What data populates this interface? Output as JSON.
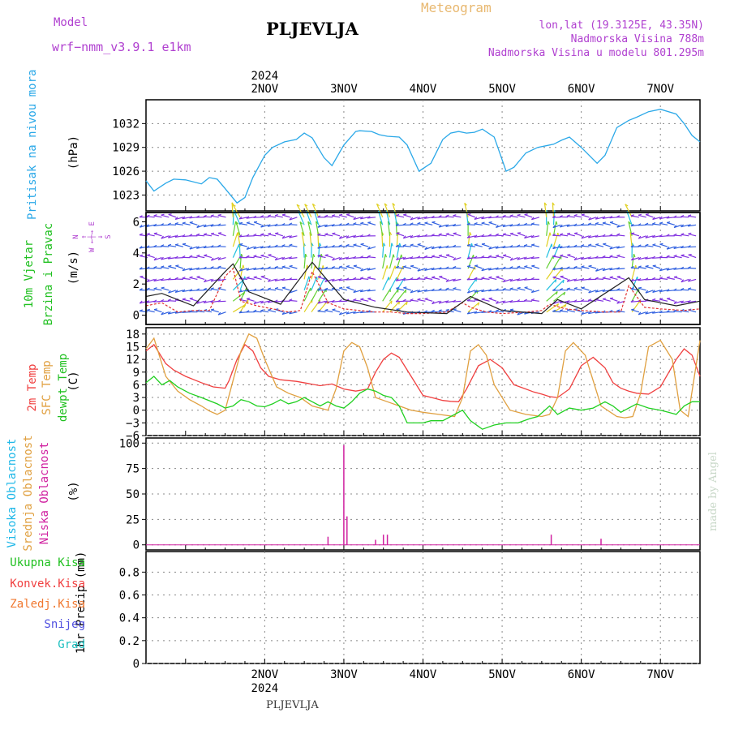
{
  "header": {
    "model_label": "Model",
    "model_value": "wrf−nmm_v3.9.1  e1km",
    "station_title": "PLJEVLJA",
    "meteogram_label": "Meteogram",
    "lonlat": "lon,lat (19.3125E, 43.35N)",
    "height_real": "Nadmorska Visina 788m",
    "height_model": "Nadmorska Visina u modelu 801.295m",
    "footer_station": "PLJEVLJA",
    "credit": "made by Angel",
    "colors": {
      "model": "#b040d0",
      "meteogram": "#e8b870",
      "info": "#b040d0",
      "credit": "#c8d8c8"
    }
  },
  "x_axis": {
    "year_label": "2024",
    "days": [
      "2NOV",
      "3NOV",
      "4NOV",
      "5NOV",
      "6NOV",
      "7NOV"
    ],
    "range_days": [
      0.5,
      7.5
    ]
  },
  "chart_data": [
    {
      "type": "line",
      "id": "pressure",
      "ylabel_lines": [
        "Pritisak na nivou mora"
      ],
      "unit": "(hPa)",
      "yticks": [
        "1023",
        "1026",
        "1029",
        "1032"
      ],
      "ylim": [
        1021,
        1035
      ],
      "grid": true,
      "series": [
        {
          "color": "#2aa8e8",
          "x": [
            0.5,
            0.6,
            0.75,
            0.85,
            1.0,
            1.2,
            1.3,
            1.4,
            1.5,
            1.65,
            1.75,
            1.85,
            2.0,
            2.1,
            2.25,
            2.4,
            2.5,
            2.6,
            2.75,
            2.85,
            3.0,
            3.15,
            3.2,
            3.35,
            3.45,
            3.55,
            3.7,
            3.8,
            3.95,
            4.1,
            4.25,
            4.35,
            4.45,
            4.55,
            4.65,
            4.75,
            4.9,
            5.05,
            5.15,
            5.3,
            5.45,
            5.55,
            5.65,
            5.75,
            5.85,
            6.0,
            6.2,
            6.3,
            6.45,
            6.6,
            6.7,
            6.85,
            7.0,
            7.2,
            7.3,
            7.4,
            7.5
          ],
          "values": [
            1024.8,
            1023.5,
            1024.5,
            1025.0,
            1024.9,
            1024.4,
            1025.2,
            1025.0,
            1023.8,
            1022.0,
            1022.7,
            1025.2,
            1028.0,
            1029.0,
            1029.7,
            1030.0,
            1030.8,
            1030.2,
            1027.7,
            1026.7,
            1029.3,
            1031.0,
            1031.1,
            1031.0,
            1030.6,
            1030.4,
            1030.3,
            1029.3,
            1026.0,
            1027.0,
            1030.0,
            1030.8,
            1031.0,
            1030.8,
            1030.9,
            1031.3,
            1030.3,
            1026.0,
            1026.5,
            1028.3,
            1029.0,
            1029.2,
            1029.4,
            1029.9,
            1030.3,
            1029.0,
            1027.0,
            1028.0,
            1031.5,
            1032.4,
            1032.8,
            1033.5,
            1033.8,
            1033.2,
            1032.0,
            1030.5,
            1029.7
          ]
        }
      ]
    },
    {
      "type": "line",
      "id": "wind",
      "ylabel_lines": [
        "10m Vjetar",
        "Brzina i Pravac"
      ],
      "unit": "(m/s)",
      "compass": "N↑ S↓ W← E→",
      "yticks": [
        "0",
        "2",
        "4",
        "6"
      ],
      "ylim": [
        -0.6,
        6.6
      ],
      "series": [
        {
          "color": "#e03030",
          "x": [
            0.5,
            0.7,
            0.9,
            1.1,
            1.3,
            1.5,
            1.6,
            1.7,
            1.9,
            2.1,
            2.3,
            2.45,
            2.6,
            2.8,
            3.0,
            3.2,
            3.4,
            3.6,
            3.8,
            4.0,
            4.3,
            4.5,
            4.6,
            4.8,
            5.0,
            5.3,
            5.5,
            5.6,
            5.8,
            6.0,
            6.3,
            6.5,
            6.6,
            6.8,
            7.0,
            7.3,
            7.5
          ],
          "values": [
            0.6,
            0.8,
            0.2,
            0.3,
            0.3,
            2.5,
            3.0,
            0.9,
            0.6,
            0.4,
            0.2,
            0.3,
            2.8,
            0.8,
            0.4,
            0.3,
            0.2,
            0.2,
            0.1,
            0.1,
            0.2,
            0.8,
            0.5,
            0.2,
            0.1,
            0.2,
            0.3,
            0.7,
            0.4,
            0.3,
            0.2,
            0.2,
            1.9,
            0.5,
            0.4,
            0.3,
            0.4
          ]
        },
        {
          "color": "#222222",
          "x": [
            0.5,
            0.7,
            1.1,
            1.5,
            1.6,
            1.8,
            2.2,
            2.6,
            3.0,
            3.4,
            3.8,
            4.3,
            4.6,
            5.0,
            5.5,
            5.7,
            6.0,
            6.6,
            6.8,
            7.2,
            7.5
          ],
          "values": [
            1.2,
            1.4,
            0.6,
            2.8,
            3.3,
            1.5,
            0.7,
            3.4,
            1.0,
            0.5,
            0.2,
            0.1,
            1.2,
            0.3,
            0.1,
            1.0,
            0.4,
            2.4,
            1.0,
            0.6,
            0.9
          ]
        }
      ]
    },
    {
      "type": "line",
      "id": "temperature",
      "ylabel_lines": [
        "2m Temp",
        "SFC Temp",
        "dewpt Temp"
      ],
      "unit": "(C)",
      "yticks": [
        "−6",
        "−3",
        "0",
        "3",
        "6",
        "9",
        "12",
        "15",
        "18"
      ],
      "ylim": [
        -6,
        19.5
      ],
      "grid": true,
      "series": [
        {
          "name": "2m Temp",
          "color": "#f04040",
          "x": [
            0.5,
            0.6,
            0.75,
            0.85,
            1.0,
            1.2,
            1.35,
            1.5,
            1.55,
            1.65,
            1.75,
            1.85,
            1.95,
            2.05,
            2.2,
            2.4,
            2.55,
            2.7,
            2.85,
            3.0,
            3.15,
            3.3,
            3.4,
            3.5,
            3.6,
            3.7,
            3.85,
            4.0,
            4.15,
            4.25,
            4.35,
            4.45,
            4.55,
            4.7,
            4.85,
            5.0,
            5.15,
            5.3,
            5.4,
            5.5,
            5.6,
            5.7,
            5.85,
            6.0,
            6.15,
            6.3,
            6.4,
            6.5,
            6.6,
            6.7,
            6.85,
            7.0,
            7.2,
            7.3,
            7.4,
            7.5
          ],
          "values": [
            14.0,
            15.5,
            11.0,
            9.5,
            8.0,
            6.5,
            5.5,
            5.2,
            7.0,
            12.0,
            15.5,
            14.0,
            10.0,
            8.0,
            7.2,
            6.8,
            6.3,
            5.8,
            6.2,
            5.0,
            4.5,
            5.0,
            9.0,
            12.0,
            13.5,
            12.5,
            8.0,
            3.5,
            2.8,
            2.3,
            2.1,
            2.0,
            5.0,
            10.5,
            12.0,
            10.0,
            6.0,
            5.0,
            4.3,
            3.8,
            3.2,
            3.0,
            5.0,
            10.5,
            12.5,
            10.0,
            6.5,
            5.2,
            4.5,
            4.0,
            3.8,
            5.5,
            12.0,
            14.5,
            13.0,
            8.0
          ]
        },
        {
          "name": "SFC Temp",
          "color": "#e0a040",
          "x": [
            0.5,
            0.6,
            0.75,
            0.9,
            1.05,
            1.2,
            1.3,
            1.4,
            1.5,
            1.6,
            1.7,
            1.8,
            1.9,
            2.0,
            2.15,
            2.3,
            2.45,
            2.6,
            2.7,
            2.8,
            2.9,
            3.0,
            3.1,
            3.2,
            3.3,
            3.4,
            3.55,
            3.7,
            3.85,
            4.0,
            4.2,
            4.4,
            4.5,
            4.6,
            4.7,
            4.8,
            4.9,
            5.1,
            5.3,
            5.5,
            5.6,
            5.7,
            5.8,
            5.9,
            6.05,
            6.25,
            6.45,
            6.55,
            6.65,
            6.75,
            6.85,
            7.0,
            7.15,
            7.25,
            7.35,
            7.5
          ],
          "values": [
            14.5,
            17.0,
            8.0,
            4.5,
            2.5,
            1.0,
            -0.2,
            -1.0,
            0.0,
            7.0,
            14.0,
            18.0,
            17.0,
            12.0,
            5.5,
            4.0,
            3.0,
            1.0,
            0.5,
            0.0,
            5.0,
            14.0,
            16.0,
            15.0,
            10.0,
            3.0,
            2.0,
            1.0,
            0.0,
            -0.5,
            -1.0,
            -1.5,
            3.0,
            14.0,
            15.5,
            13.0,
            6.0,
            0.0,
            -1.0,
            -1.5,
            -1.0,
            3.0,
            14.0,
            16.0,
            13.0,
            1.0,
            -1.5,
            -1.8,
            -1.5,
            4.0,
            15.0,
            16.5,
            12.0,
            0.0,
            -1.5,
            16.5
          ]
        },
        {
          "name": "dewpt Temp",
          "color": "#20d020",
          "x": [
            0.5,
            0.6,
            0.7,
            0.8,
            0.9,
            1.05,
            1.2,
            1.4,
            1.5,
            1.6,
            1.7,
            1.8,
            1.9,
            2.0,
            2.1,
            2.2,
            2.3,
            2.4,
            2.5,
            2.6,
            2.7,
            2.8,
            2.9,
            3.0,
            3.1,
            3.2,
            3.3,
            3.4,
            3.5,
            3.6,
            3.7,
            3.8,
            3.9,
            4.0,
            4.1,
            4.25,
            4.4,
            4.5,
            4.6,
            4.75,
            4.9,
            5.05,
            5.2,
            5.35,
            5.45,
            5.6,
            5.7,
            5.85,
            6.0,
            6.15,
            6.3,
            6.4,
            6.5,
            6.6,
            6.7,
            6.85,
            7.0,
            7.1,
            7.2,
            7.3,
            7.4,
            7.5
          ],
          "values": [
            6.5,
            8.0,
            6.0,
            7.0,
            5.5,
            4.0,
            3.0,
            1.5,
            0.5,
            1.0,
            2.5,
            2.0,
            1.0,
            0.8,
            1.5,
            2.5,
            1.5,
            2.0,
            3.0,
            2.0,
            1.0,
            2.0,
            1.0,
            0.5,
            2.0,
            4.0,
            5.0,
            4.5,
            3.5,
            3.0,
            1.0,
            -3.0,
            -3.0,
            -3.0,
            -2.5,
            -2.5,
            -1.0,
            0.0,
            -2.5,
            -4.5,
            -3.5,
            -3.0,
            -3.0,
            -2.0,
            -1.5,
            1.0,
            -1.0,
            0.5,
            0.0,
            0.5,
            2.0,
            1.0,
            -0.5,
            0.5,
            1.5,
            0.5,
            0.0,
            -0.5,
            -1.0,
            1.0,
            2.0,
            2.0
          ]
        }
      ]
    },
    {
      "type": "bar",
      "id": "clouds",
      "ylabel_lines": [
        "Visoka Oblacnost",
        "Srednja Oblacnost",
        "Niska Oblacnost"
      ],
      "unit": "(%)",
      "yticks": [
        "0",
        "25",
        "50",
        "75",
        "100"
      ],
      "ylim": [
        -5,
        105
      ],
      "grid": true,
      "series": [
        {
          "name": "Niska Oblacnost",
          "color": "#d020a0",
          "x": [
            2.8,
            3.0,
            3.04,
            3.4,
            3.5,
            3.55,
            5.62,
            6.25
          ],
          "values": [
            8,
            98,
            28,
            5,
            10,
            10,
            10,
            6
          ]
        }
      ]
    },
    {
      "type": "bar",
      "id": "precip",
      "ylabel_lines": [
        "1hr Precip (mm)"
      ],
      "yticks": [
        "0",
        "0.2",
        "0.4",
        "0.6",
        "0.8"
      ],
      "ylim": [
        0,
        0.98
      ],
      "grid": true,
      "legend": [
        {
          "name": "Ukupna Kisa",
          "color": "#20c020"
        },
        {
          "name": "Konvek.Kisa",
          "color": "#f04040"
        },
        {
          "name": "Zaledj.Kisa",
          "color": "#f07830"
        },
        {
          "name": "Snijeg",
          "color": "#5050e0"
        },
        {
          "name": "Grad",
          "color": "#20c0c0"
        }
      ],
      "series": []
    }
  ]
}
